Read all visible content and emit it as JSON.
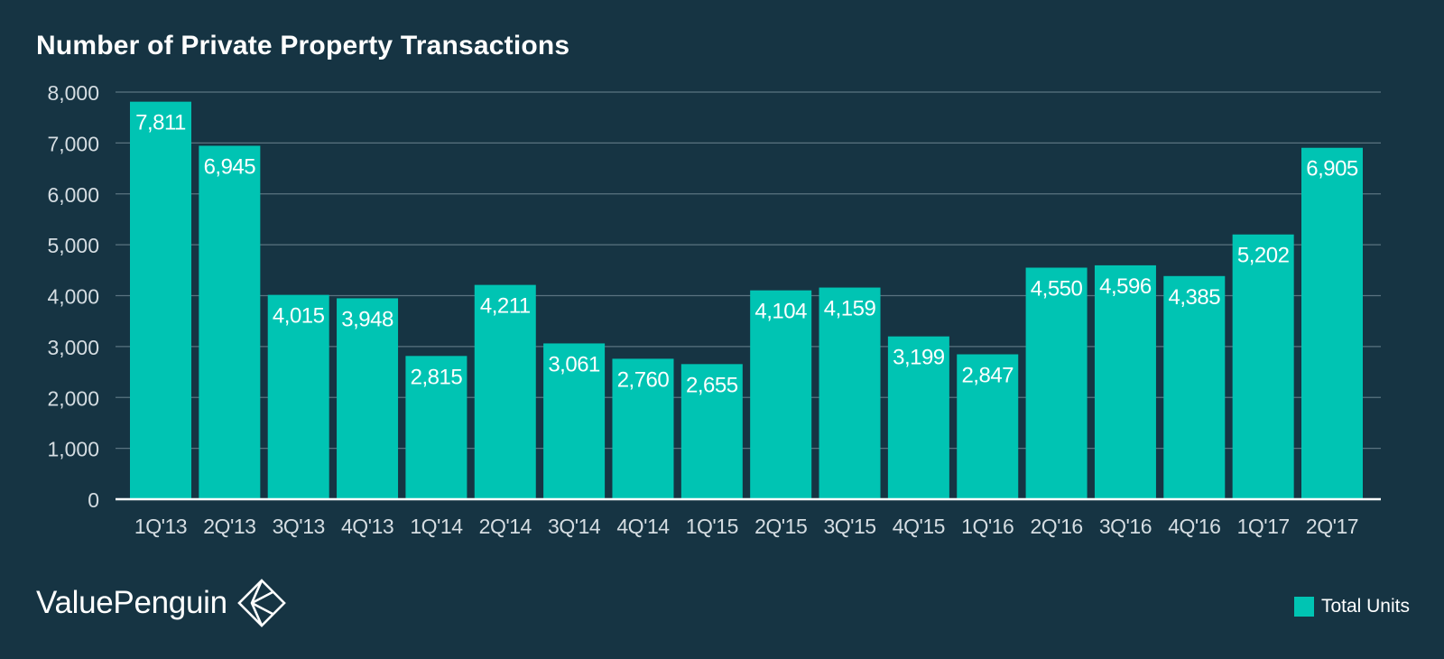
{
  "colors": {
    "background": "#163443",
    "bar": "#00c4b3",
    "grid": "#5a7380",
    "axis": "#ffffff",
    "text": "#ffffff",
    "tick_text": "#d5dde2"
  },
  "brand": {
    "name": "ValuePenguin",
    "logo_icon": "penguin-diamond-logo-icon"
  },
  "chart_data": {
    "type": "bar",
    "title": "Number of Private Property Transactions",
    "xlabel": "",
    "ylabel": "",
    "ylim": [
      0,
      8000
    ],
    "yticks": [
      0,
      1000,
      2000,
      3000,
      4000,
      5000,
      6000,
      7000,
      8000
    ],
    "ytick_labels": [
      "0",
      "1,000",
      "2,000",
      "3,000",
      "4,000",
      "5,000",
      "6,000",
      "7,000",
      "8,000"
    ],
    "grid": true,
    "legend_position": "bottom-right",
    "categories": [
      "1Q'13",
      "2Q'13",
      "3Q'13",
      "4Q'13",
      "1Q'14",
      "2Q'14",
      "3Q'14",
      "4Q'14",
      "1Q'15",
      "2Q'15",
      "3Q'15",
      "4Q'15",
      "1Q'16",
      "2Q'16",
      "3Q'16",
      "4Q'16",
      "1Q'17",
      "2Q'17"
    ],
    "series": [
      {
        "name": "Total Units",
        "values": [
          7811,
          6945,
          4015,
          3948,
          2815,
          4211,
          3061,
          2760,
          2655,
          4104,
          4159,
          3199,
          2847,
          4550,
          4596,
          4385,
          5202,
          6905
        ],
        "labels": [
          "7,811",
          "6,945",
          "4,015",
          "3,948",
          "2,815",
          "4,211",
          "3,061",
          "2,760",
          "2,655",
          "4,104",
          "4,159",
          "3,199",
          "2,847",
          "4,550",
          "4,596",
          "4,385",
          "5,202",
          "6,905"
        ]
      }
    ]
  }
}
